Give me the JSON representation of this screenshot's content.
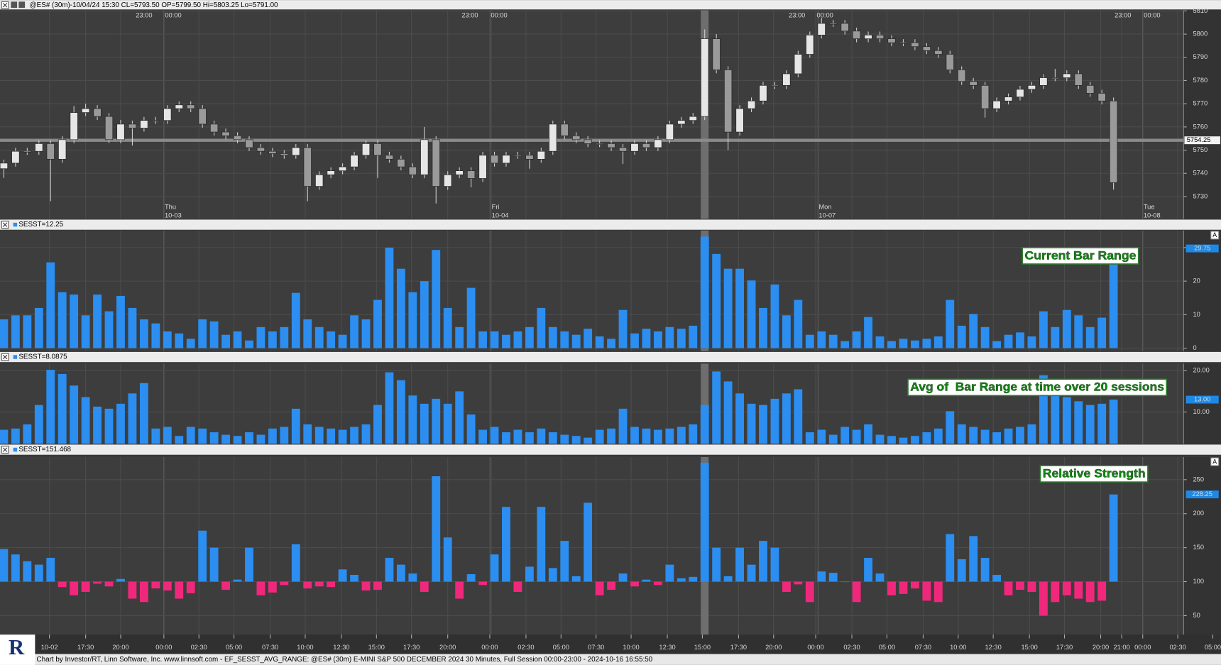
{
  "chart_data": [
    {
      "type": "candlestick",
      "title": "@ES# (30m)-10/04/24 15:30 CL=5793.50 OP=5799.50 Hi=5803.25 Lo=5791.00",
      "open": [
        5742.0,
        5744.4,
        5749.5,
        5749.5,
        5752.8,
        5746.1,
        5754.5,
        5766.2,
        5767.9,
        5764.5,
        5754.5,
        5761.2,
        5759.5,
        5762.8,
        5762.8,
        5767.9,
        5769.5,
        5767.9,
        5761.2,
        5757.8,
        5756.2,
        5754.5,
        5751.1,
        5749.5,
        5748.5,
        5747.8,
        5751.1,
        5734.4,
        5739.4,
        5741.1,
        5742.8,
        5747.8,
        5752.8,
        5747.8,
        5746.1,
        5742.8,
        5739.4,
        5754.5,
        5734.4,
        5739.4,
        5741.1,
        5737.8,
        5747.8,
        5744.4,
        5747.8,
        5747.8,
        5746.1,
        5749.5,
        5761.2,
        5756.2,
        5754.5,
        5752.8,
        5752.8,
        5751.1,
        5749.5,
        5752.8,
        5751.1,
        5754.5,
        5761.2,
        5762.8,
        5764.5,
        5798.0,
        5784.6,
        5757.8,
        5767.9,
        5771.2,
        5777.9,
        5777.9,
        5782.9,
        5791.3,
        5799.6,
        5804.6,
        5804.6,
        5801.3,
        5798.0,
        5799.6,
        5798.0,
        5796.3,
        5796.3,
        5794.6,
        5792.9,
        5791.3,
        5784.6,
        5779.6,
        5777.9,
        5767.9,
        5771.2,
        5772.9,
        5776.2,
        5777.9,
        5781.2,
        5781.2,
        5782.9,
        5777.9,
        5774.5,
        5771.2
      ],
      "high": [
        5745.9,
        5751,
        5751,
        5754.3,
        5754.3,
        5756,
        5769,
        5770,
        5769.4,
        5766,
        5763,
        5762.7,
        5764.3,
        5764.3,
        5769.4,
        5771,
        5771,
        5769.4,
        5762.7,
        5759.3,
        5757.7,
        5756,
        5752.6,
        5751,
        5750,
        5752.6,
        5752.6,
        5740.9,
        5742.6,
        5744.3,
        5749.3,
        5754.3,
        5754.3,
        5749.3,
        5747.6,
        5744.3,
        5760,
        5756,
        5740.9,
        5742.6,
        5742.6,
        5749.3,
        5749.3,
        5749.3,
        5749.3,
        5749.3,
        5751,
        5762.7,
        5762.7,
        5757.7,
        5756,
        5754.3,
        5754.3,
        5752.6,
        5754.3,
        5754.3,
        5756,
        5762.7,
        5764.3,
        5766,
        5802,
        5800,
        5786.1,
        5769.4,
        5772.7,
        5779.4,
        5779.4,
        5784.4,
        5792.8,
        5801.1,
        5807,
        5806.1,
        5806.1,
        5802.8,
        5801.1,
        5801.1,
        5799.5,
        5797.8,
        5797.8,
        5796.1,
        5794.4,
        5792.8,
        5786.1,
        5781.1,
        5779.4,
        5772.7,
        5774.4,
        5777.7,
        5779.4,
        5782.7,
        5785,
        5784.4,
        5784.4,
        5779.4,
        5776,
        5772.7
      ],
      "low": [
        5738,
        5742.9,
        5748,
        5748,
        5728,
        5744.6,
        5753,
        5764.7,
        5763,
        5753,
        5753,
        5752,
        5758,
        5761.3,
        5761.3,
        5766.4,
        5766.4,
        5759.7,
        5756.3,
        5754.7,
        5753,
        5749.6,
        5748,
        5747,
        5746.3,
        5746.3,
        5728,
        5732.9,
        5737.9,
        5739.6,
        5741.3,
        5746.3,
        5738,
        5744.6,
        5741.3,
        5737.9,
        5737.9,
        5727,
        5732.9,
        5737.9,
        5734,
        5736.3,
        5742.9,
        5742.9,
        5746.3,
        5742,
        5744.6,
        5748,
        5754.7,
        5753,
        5751.3,
        5751.3,
        5749.6,
        5744,
        5748,
        5749.6,
        5749.6,
        5753,
        5759.7,
        5761.3,
        5763,
        5783.1,
        5750,
        5756.3,
        5766.4,
        5769.7,
        5776.4,
        5776.4,
        5781.4,
        5789.8,
        5798.1,
        5803.1,
        5799.8,
        5796.5,
        5796.5,
        5796.5,
        5794.8,
        5794.8,
        5793.1,
        5791.4,
        5789.8,
        5783.1,
        5778.1,
        5776.4,
        5764,
        5766.4,
        5769.7,
        5771.4,
        5774.7,
        5776.4,
        5779.7,
        5779.7,
        5776.4,
        5773,
        5769.7,
        5733
      ],
      "close": [
        5744.4,
        5749.5,
        5749.5,
        5752.8,
        5746.1,
        5754.5,
        5766.2,
        5767.9,
        5764.5,
        5754.5,
        5761.2,
        5759.5,
        5762.8,
        5762.8,
        5767.9,
        5769.5,
        5767.9,
        5761.2,
        5757.8,
        5756.2,
        5754.5,
        5751.1,
        5749.5,
        5748.5,
        5747.8,
        5751.1,
        5734.4,
        5739.4,
        5741.1,
        5742.8,
        5747.8,
        5752.8,
        5747.8,
        5746.1,
        5742.8,
        5739.4,
        5754.5,
        5734.4,
        5739.4,
        5741.1,
        5737.8,
        5747.8,
        5744.4,
        5747.8,
        5747.8,
        5746.1,
        5749.5,
        5761.2,
        5756.2,
        5754.5,
        5752.8,
        5752.8,
        5751.1,
        5749.5,
        5752.8,
        5751.1,
        5754.5,
        5761.2,
        5762.8,
        5764.5,
        5798.0,
        5784.6,
        5757.8,
        5767.9,
        5771.2,
        5777.9,
        5777.9,
        5782.9,
        5791.3,
        5799.6,
        5804.6,
        5804.6,
        5801.3,
        5798.0,
        5799.6,
        5798.0,
        5796.3,
        5796.3,
        5794.6,
        5792.9,
        5791.3,
        5784.6,
        5779.6,
        5777.9,
        5767.9,
        5771.2,
        5772.9,
        5776.2,
        5777.9,
        5781.2,
        5781.2,
        5782.9,
        5777.9,
        5774.5,
        5771.2,
        5736.0
      ],
      "up_color": "#e6e6e6",
      "down_color": "#9a9a9a",
      "xlim": [
        -0.33,
        101
      ],
      "ylim": [
        5720.4,
        5810.3
      ],
      "yticks": [
        5730,
        5740,
        5750,
        5760,
        5770,
        5780,
        5790,
        5800,
        5810
      ],
      "xticks": [
        {
          "value": 12,
          "label": "23:00"
        },
        {
          "value": 14.5,
          "label": "00:00"
        },
        {
          "value": 39.9,
          "label": "23:00"
        },
        {
          "value": 42.4,
          "label": "00:00"
        },
        {
          "value": 67.9,
          "label": "23:00"
        },
        {
          "value": 70.3,
          "label": "00:00"
        },
        {
          "value": 95.8,
          "label": "23:00"
        },
        {
          "value": 98.3,
          "label": "00:00"
        }
      ],
      "day_labels": [
        {
          "value": 13.7,
          "label": "Thu",
          "date": "10-03"
        },
        {
          "value": 41.7,
          "label": "Fri",
          "date": "10-04"
        },
        {
          "value": 69.7,
          "label": "Mon",
          "date": "10-07"
        },
        {
          "value": 97.5,
          "label": "Tue",
          "date": "10-08"
        }
      ],
      "cursor_x": 60,
      "cursor_price": 5754.25,
      "grid": true
    },
    {
      "type": "bar",
      "title": "SESST=12.25",
      "annotation": "Current Bar Range",
      "scale_mode": "A",
      "color": "#2b8ef0",
      "values": [
        8.6,
        9.8,
        9.8,
        12,
        25.6,
        16.7,
        16,
        9.8,
        16,
        11,
        15.6,
        12,
        8.6,
        7.4,
        5,
        4.4,
        2.8,
        8.6,
        8,
        4,
        5,
        2.3,
        6.3,
        5,
        6.3,
        16.5,
        8.6,
        6.3,
        5,
        4,
        9.8,
        8.6,
        14.4,
        30,
        23.7,
        16.7,
        20,
        29.3,
        12,
        6.3,
        18,
        5,
        5,
        4,
        5,
        6.3,
        12,
        6.3,
        5,
        4,
        5.8,
        3.5,
        2.8,
        11.4,
        4.4,
        5.8,
        5,
        6.3,
        5.8,
        6.7,
        33.3,
        28.1,
        23.7,
        23.7,
        20.2,
        12,
        19,
        9.8,
        14.4,
        4,
        5,
        4,
        2.1,
        5,
        9.3,
        3.5,
        2.1,
        2.8,
        2.3,
        2.8,
        3.5,
        14.4,
        6.7,
        10.2,
        6.3,
        2.1,
        4,
        4.7,
        3.5,
        11,
        6.3,
        11.4,
        9.8,
        6.3,
        9.1,
        29.75
      ],
      "xlim": [
        -0.33,
        101
      ],
      "ylim": [
        -0.9,
        35.1
      ],
      "yticks": [
        0,
        10,
        20,
        30
      ],
      "grid": true
    },
    {
      "type": "bar",
      "title": "SESST=8.0875",
      "annotation": "Avg of  Bar Range at time over 20 sessions",
      "color": "#2b8ef0",
      "values": [
        5.7,
        6,
        7,
        11.7,
        20.2,
        19.2,
        16.4,
        13.6,
        11.3,
        10.8,
        12,
        14.5,
        17,
        6,
        6.4,
        4.2,
        6.4,
        6,
        5.1,
        4.5,
        4.2,
        5.1,
        4.5,
        6,
        6.4,
        10.8,
        7,
        6.4,
        6,
        5.7,
        6.4,
        7,
        11.7,
        19.6,
        17.7,
        14,
        12,
        13.2,
        12,
        15,
        9.4,
        5.7,
        6.4,
        5.1,
        5.7,
        5.1,
        6,
        5.1,
        4.5,
        4.2,
        3.8,
        5.7,
        6,
        10.8,
        6.4,
        6,
        5.7,
        6,
        6.4,
        7,
        11.7,
        19.8,
        17.4,
        14.5,
        12,
        11.7,
        13.2,
        14.5,
        15.5,
        5.1,
        5.7,
        4.5,
        6.4,
        5.7,
        7,
        4.5,
        4.2,
        3.8,
        4.2,
        5.1,
        6,
        10.2,
        7,
        6.4,
        5.7,
        5.1,
        6,
        6.4,
        7,
        18.9,
        17.4,
        13.6,
        12.6,
        11.7,
        12,
        13
      ],
      "value_labels": {
        "95": "13.00"
      },
      "xlim": [
        -0.33,
        101
      ],
      "ylim": [
        2.3,
        21.7
      ],
      "yticks": [
        {
          "value": 10,
          "label": "10.00"
        },
        {
          "value": 20,
          "label": "20.00"
        }
      ],
      "grid": true
    },
    {
      "type": "bar",
      "title": "SESST=151.468",
      "annotation": "Relative Strength",
      "scale_mode": "A",
      "color": "#2b8ef0",
      "negative_color": "#f0287c",
      "baseline": 100,
      "values": [
        148,
        140,
        130,
        125,
        135,
        92,
        80,
        85,
        97,
        93,
        104,
        75,
        70,
        90,
        87,
        75,
        83,
        175,
        150,
        88,
        103,
        150,
        80,
        84,
        95,
        155,
        90,
        93,
        92,
        118,
        110,
        87,
        88,
        135,
        125,
        112,
        85,
        255,
        165,
        75,
        111,
        95,
        140,
        210,
        85,
        122,
        210,
        120,
        160,
        108,
        216,
        80,
        88,
        112,
        93,
        103,
        95,
        125,
        105,
        107,
        275,
        150,
        108,
        150,
        125,
        160,
        150,
        85,
        96,
        70,
        115,
        113,
        100,
        70,
        135,
        112,
        80,
        82,
        90,
        72,
        70,
        170,
        133,
        167,
        135,
        110,
        80,
        88,
        85,
        50,
        70,
        80,
        75,
        70,
        72,
        228.25
      ],
      "xlim": [
        -0.33,
        101
      ],
      "ylim": [
        22.2,
        283.2
      ],
      "yticks": [
        50,
        100,
        150,
        200,
        250
      ],
      "grid": true,
      "xticks": [
        {
          "value": 3.9,
          "label": "10-02"
        },
        {
          "value": 7,
          "label": "17:30"
        },
        {
          "value": 10,
          "label": "20:00"
        },
        {
          "value": 13.7,
          "label": "00:00"
        },
        {
          "value": 16.7,
          "label": "02:30"
        },
        {
          "value": 19.7,
          "label": "05:00"
        },
        {
          "value": 22.8,
          "label": "07:30"
        },
        {
          "value": 25.8,
          "label": "10:00"
        },
        {
          "value": 28.9,
          "label": "12:30"
        },
        {
          "value": 31.9,
          "label": "15:00"
        },
        {
          "value": 34.9,
          "label": "17:30"
        },
        {
          "value": 38,
          "label": "20:00"
        },
        {
          "value": 41.6,
          "label": "00:00"
        },
        {
          "value": 44.7,
          "label": "02:30"
        },
        {
          "value": 47.7,
          "label": "05:00"
        },
        {
          "value": 50.7,
          "label": "07:30"
        },
        {
          "value": 53.7,
          "label": "10:00"
        },
        {
          "value": 56.8,
          "label": "12:30"
        },
        {
          "value": 59.8,
          "label": "15:00"
        },
        {
          "value": 62.9,
          "label": "17:30"
        },
        {
          "value": 65.9,
          "label": "20:00"
        },
        {
          "value": 69.5,
          "label": "00:00"
        },
        {
          "value": 72.6,
          "label": "02:30"
        },
        {
          "value": 75.6,
          "label": "05:00"
        },
        {
          "value": 78.7,
          "label": "07:30"
        },
        {
          "value": 81.7,
          "label": "10:00"
        },
        {
          "value": 84.7,
          "label": "12:30"
        },
        {
          "value": 87.8,
          "label": "15:00"
        },
        {
          "value": 90.8,
          "label": "17:30"
        },
        {
          "value": 93.9,
          "label": "20:00"
        },
        {
          "value": 95.7,
          "label": "21:00"
        },
        {
          "value": 97.5,
          "label": "00:00"
        },
        {
          "value": 100.5,
          "label": "02:30"
        },
        {
          "value": 103.5,
          "label": "05:00"
        }
      ]
    }
  ],
  "footer": "Chart by Investor/RT, Linn Software, Inc. www.linnsoft.com - EF_SESST_AVG_RANGE: @ES# (30m) E-MINI S&P 500 DECEMBER 2024 30 Minutes, Full Session 00:00-23:00 - 2024-10-16 16:55:50",
  "logo": "R"
}
